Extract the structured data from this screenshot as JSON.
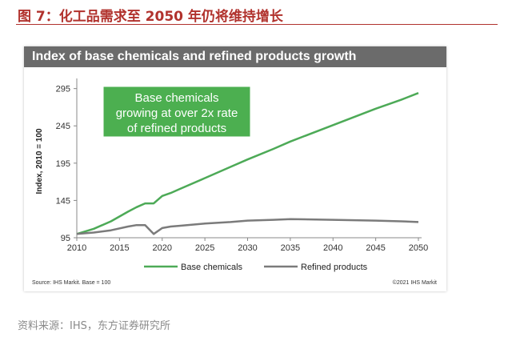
{
  "figure_title": "图 7：化工品需求至 2050 年仍将维持增长",
  "source": "资料来源：IHS，东方证券研究所",
  "chart_data": {
    "type": "line",
    "title": "Index of base chemicals and refined products growth",
    "ylabel": "Index, 2010 = 100",
    "xlabel": "",
    "x": [
      2010,
      2012,
      2014,
      2016,
      2017,
      2018,
      2019,
      2020,
      2021,
      2022,
      2025,
      2028,
      2030,
      2033,
      2035,
      2040,
      2045,
      2048,
      2050
    ],
    "series": [
      {
        "name": "Base chemicals",
        "color": "#4daa57",
        "values": [
          100,
          107,
          117,
          130,
          136,
          141,
          141,
          151,
          155,
          160,
          175,
          190,
          200,
          214,
          224,
          246,
          268,
          280,
          289
        ]
      },
      {
        "name": "Refined products",
        "color": "#7b7b7b",
        "values": [
          100,
          102,
          105,
          110,
          112,
          112,
          100,
          108,
          110,
          111,
          114,
          116,
          118,
          119,
          120,
          119,
          118,
          117,
          116
        ]
      }
    ],
    "xticks": [
      2010,
      2015,
      2020,
      2025,
      2030,
      2035,
      2040,
      2045,
      2050
    ],
    "yticks": [
      95,
      145,
      195,
      245,
      295
    ],
    "xlim": [
      2010,
      2050
    ],
    "ylim": [
      95,
      300
    ],
    "annotation": "Base chemicals growing at over 2x rate of refined products",
    "annotation_color": "#4caf50",
    "legend_position": "bottom",
    "grid": false,
    "footnote_left": "Source: IHS Markit. Base = 100",
    "footnote_right": "©2021 IHS Markit"
  }
}
